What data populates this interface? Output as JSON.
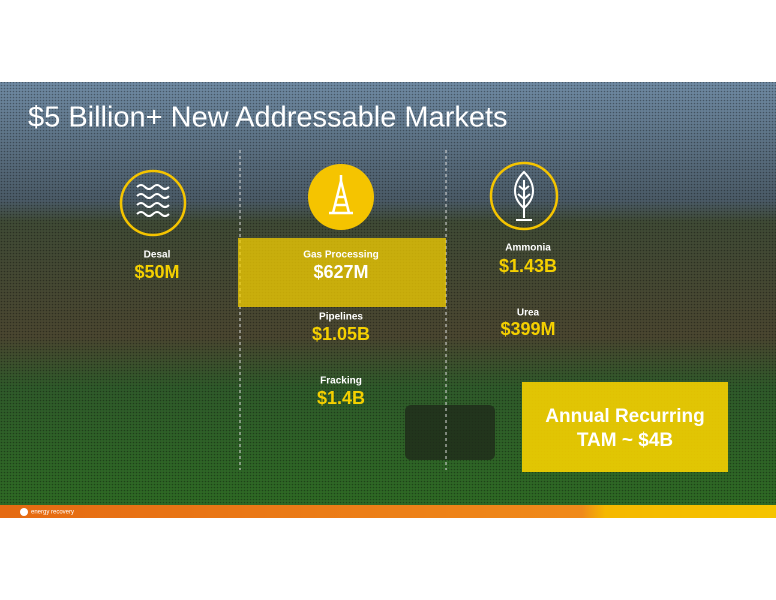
{
  "title": "$5 Billion+ New Addressable Markets",
  "columns": [
    {
      "markets": [
        {
          "label": "Desal",
          "value": "$50M"
        }
      ]
    },
    {
      "markets": [
        {
          "label": "Gas Processing",
          "value": "$627M"
        },
        {
          "label": "Pipelines",
          "value": "$1.05B"
        },
        {
          "label": "Fracking",
          "value": "$1.4B"
        }
      ]
    },
    {
      "markets": [
        {
          "label": "Ammonia",
          "value": "$1.43B"
        },
        {
          "label": "Urea",
          "value": "$399M"
        }
      ]
    }
  ],
  "callout": {
    "lines": [
      "Annual Recurring",
      "TAM ~ $4B"
    ]
  },
  "logo": "energy recovery"
}
